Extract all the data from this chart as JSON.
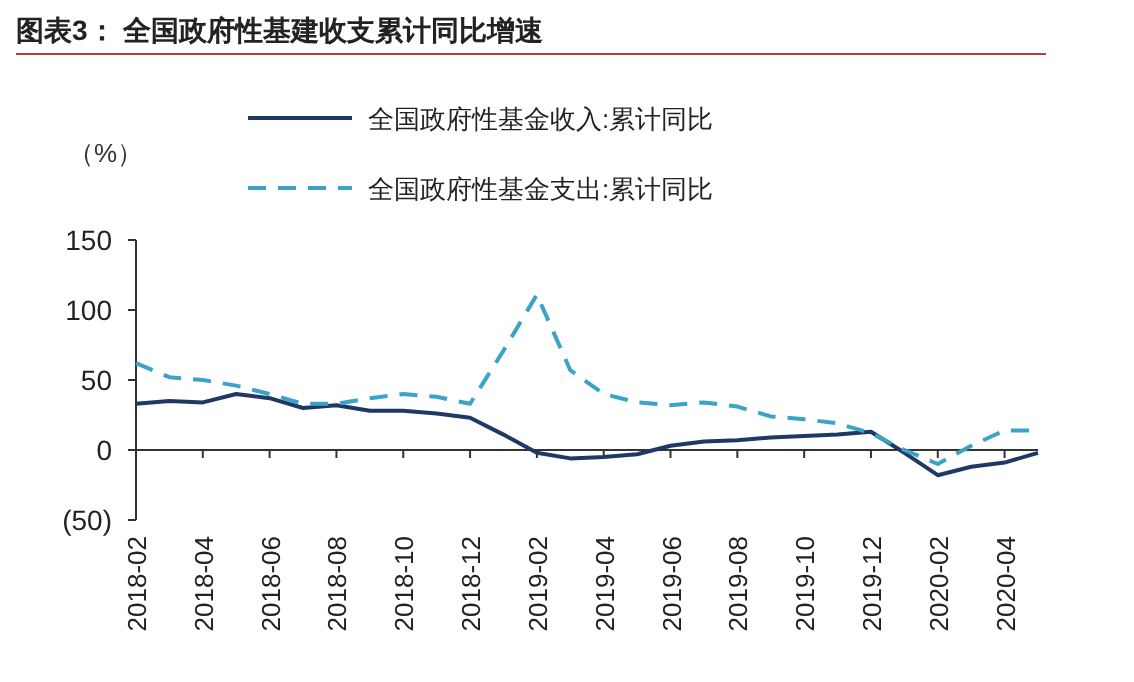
{
  "chart_data": {
    "type": "line",
    "title": "图表3：  全国政府性基建收支累计同比增速",
    "ylabel": "（%）",
    "categories": [
      "2018-02",
      null,
      "2018-04",
      null,
      "2018-06",
      null,
      "2018-08",
      null,
      "2018-10",
      null,
      "2018-12",
      null,
      "2019-02",
      null,
      "2019-04",
      null,
      "2019-06",
      null,
      "2019-08",
      null,
      "2019-10",
      null,
      "2019-12",
      null,
      "2020-02",
      null,
      "2020-04",
      null
    ],
    "ylim": [
      -50,
      150
    ],
    "yticks": [
      {
        "value": -50,
        "label": "(50)"
      },
      0,
      50,
      100,
      150
    ],
    "legend": "top",
    "series": [
      {
        "name": "全国政府性基金收入:累计同比",
        "color": "#1f3864",
        "line_style": "solid",
        "values": [
          33,
          35,
          34,
          40,
          37,
          30,
          32,
          28,
          28,
          26,
          23,
          11,
          -2,
          -6,
          -5,
          -3,
          3,
          6,
          7,
          9,
          10,
          11,
          13,
          -2,
          -18,
          -12,
          -9,
          -2
        ]
      },
      {
        "name": "全国政府性基金支出:累计同比",
        "color": "#3ba3c7",
        "line_style": "dashed",
        "values": [
          62,
          52,
          50,
          46,
          40,
          33,
          33,
          37,
          40,
          38,
          33,
          71,
          111,
          57,
          40,
          34,
          32,
          34,
          31,
          24,
          22,
          19,
          12,
          0,
          -10,
          3,
          14,
          14
        ]
      }
    ]
  }
}
